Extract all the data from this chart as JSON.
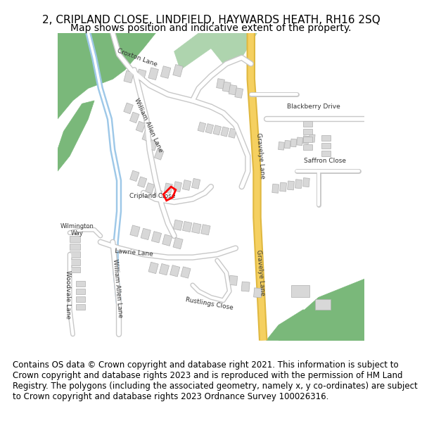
{
  "title_line1": "2, CRIPLAND CLOSE, LINDFIELD, HAYWARDS HEATH, RH16 2SQ",
  "title_line2": "Map shows position and indicative extent of the property.",
  "footer_text": "Contains OS data © Crown copyright and database right 2021. This information is subject to Crown copyright and database rights 2023 and is reproduced with the permission of HM Land Registry. The polygons (including the associated geometry, namely x, y co-ordinates) are subject to Crown copyright and database rights 2023 Ordnance Survey 100026316.",
  "bg_color": "#f8f8f8",
  "road_color": "#ffffff",
  "road_edge_color": "#c8c8c8",
  "building_color": "#d8d8d8",
  "building_edge_color": "#b0b0b0",
  "green_area_color": "#7ab87a",
  "light_green_color": "#aed4ae",
  "water_color": "#9ec8e8",
  "yellow_road_color": "#f5d060",
  "yellow_road_edge": "#e0b840",
  "highlight_color": "#ff0000",
  "title_fontsize": 11,
  "subtitle_fontsize": 10,
  "footer_fontsize": 8.5
}
